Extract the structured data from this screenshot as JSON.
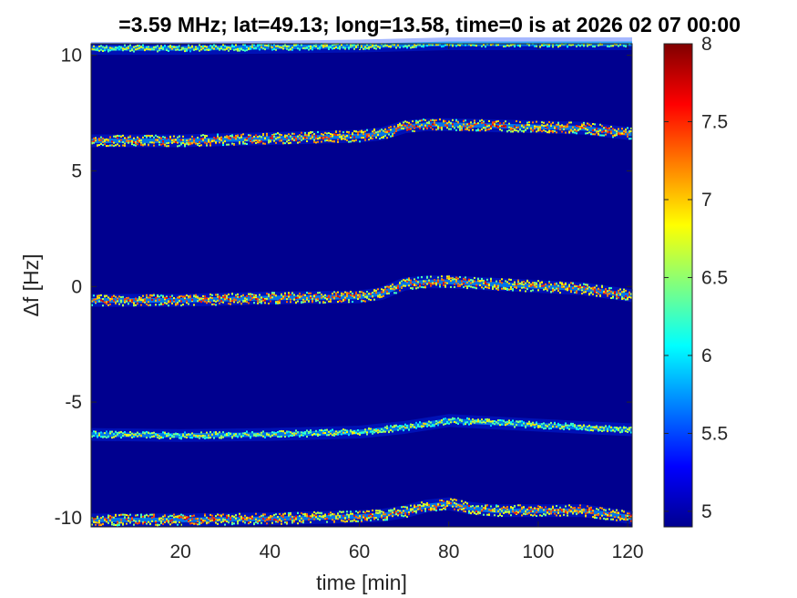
{
  "chart_data": {
    "type": "heatmap",
    "title": "=3.59 MHz;  lat=49.13; long=13.58, time=0 is at 2026 02 07 00:00",
    "xlabel": "time [min]",
    "ylabel": "Δf [Hz]",
    "xlim": [
      0,
      121
    ],
    "ylim": [
      -10.4,
      10.5
    ],
    "x_ticks": [
      20,
      40,
      60,
      80,
      100,
      120
    ],
    "y_ticks": [
      -10,
      -5,
      0,
      5,
      10
    ],
    "x_tick_labels": [
      "20",
      "40",
      "60",
      "80",
      "100",
      "120"
    ],
    "y_tick_labels": [
      "-10",
      "-5",
      "0",
      "5",
      "10"
    ],
    "colorbar": {
      "colormap": "jet",
      "range": [
        4.9,
        8.0
      ],
      "ticks": [
        5,
        5.5,
        6,
        6.5,
        7,
        7.5,
        8
      ],
      "tick_labels": [
        "5",
        "5.5",
        "6",
        "6.5",
        "7",
        "7.5",
        "8"
      ]
    },
    "background_color": "#00008f",
    "series": [
      {
        "x": [
          0,
          20,
          40,
          60,
          70,
          80,
          90,
          100,
          110,
          121
        ],
        "y": [
          10.3,
          10.3,
          10.35,
          10.4,
          10.45,
          10.5,
          10.5,
          10.5,
          10.5,
          10.5
        ]
      },
      {
        "x": [
          0,
          20,
          40,
          60,
          65,
          70,
          75,
          80,
          90,
          100,
          110,
          121
        ],
        "y": [
          6.3,
          6.3,
          6.4,
          6.5,
          6.6,
          6.9,
          7.0,
          7.0,
          6.95,
          6.9,
          6.85,
          6.6
        ]
      },
      {
        "x": [
          0,
          20,
          40,
          60,
          65,
          70,
          75,
          80,
          90,
          100,
          110,
          121
        ],
        "y": [
          -0.6,
          -0.6,
          -0.5,
          -0.45,
          -0.3,
          0.1,
          0.2,
          0.2,
          0.1,
          0.0,
          -0.1,
          -0.4
        ]
      },
      {
        "x": [
          0,
          20,
          40,
          60,
          70,
          80,
          90,
          100,
          110,
          121
        ],
        "y": [
          -6.4,
          -6.45,
          -6.4,
          -6.3,
          -6.1,
          -5.8,
          -5.9,
          -6.0,
          -6.1,
          -6.2
        ]
      },
      {
        "x": [
          0,
          20,
          40,
          60,
          65,
          70,
          75,
          80,
          85,
          90,
          100,
          110,
          121
        ],
        "y": [
          -10.1,
          -10.1,
          -10.05,
          -9.95,
          -9.9,
          -9.75,
          -9.5,
          -9.4,
          -9.6,
          -9.7,
          -9.7,
          -9.7,
          -10.0
        ]
      }
    ]
  }
}
